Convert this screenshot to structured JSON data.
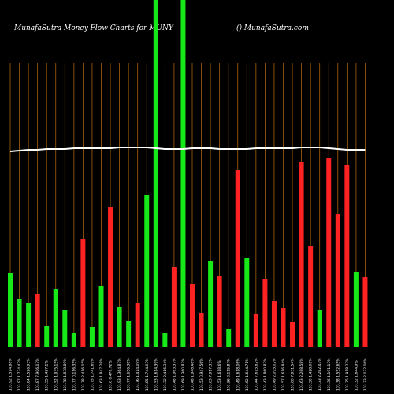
{
  "chart_data": {
    "type": "bar",
    "title": "MunafaSutra  Money Flow  Charts for MUNY",
    "subtitle": "() MunafaSutra.com",
    "categories": [
      "103.92 1.514.88%",
      "103.97 1.774.47%",
      "103.84 1.526.93%",
      "103.87 7.906.03%",
      "103.55 1.427.1%",
      "103.52 1.935.15%",
      "103.78 1.838.89%",
      "103.77 0.116.35%",
      "103.78 2.416.05%",
      "103.75 1.741.69%",
      "103.63 1.847.28%",
      "103.6 0.476.72%",
      "103.93 1.364.87%",
      "103.77 1.656.38%",
      "103.76 1.414.09%",
      "103.85 1.744.03%",
      "103.53 1.614.39%",
      "103.32 2.416.34%",
      "103.48 1.963.37%",
      "103.69 1.360.82%",
      "103.48 1.948.48%",
      "103.53 0.947.56%",
      "103.63 7.917.33%",
      "103.53 1.618.6%",
      "103.56 2.115.87%",
      "103.49 1.618.06%",
      "103.62 1.644.71%",
      "103.44 7.615.82%",
      "103.43 1.860.82%",
      "103.49 2.095.02%",
      "103.57 1.616.84%",
      "103.60 7.931.54%",
      "103.63 2.288.58%",
      "103.50 1.428.06%",
      "103.33 2.282.43%",
      "103.36 1.191.13%",
      "103.38 1.552.65%",
      "103.35 1.918.27%",
      "103.32 1.644.9%",
      "103.33 2.032.06%"
    ],
    "values": [
      93,
      60,
      56,
      67,
      26,
      73,
      46,
      17,
      137,
      25,
      77,
      177,
      51,
      33,
      56,
      193,
      440,
      17,
      101,
      440,
      79,
      43,
      109,
      90,
      23,
      224,
      112,
      41,
      86,
      58,
      49,
      31,
      235,
      128,
      47,
      240,
      169,
      230,
      95,
      89
    ],
    "colors": [
      "#17e817",
      "#17e817",
      "#17e817",
      "#ff2222",
      "#17e817",
      "#17e817",
      "#17e817",
      "#17e817",
      "#ff2222",
      "#17e817",
      "#17e817",
      "#ff2222",
      "#17e817",
      "#17e817",
      "#ff2222",
      "#17e817",
      "#17e817",
      "#17e817",
      "#ff2222",
      "#17e817",
      "#ff2222",
      "#ff2222",
      "#17e817",
      "#ff2222",
      "#17e817",
      "#ff2222",
      "#17e817",
      "#ff2222",
      "#ff2222",
      "#ff2222",
      "#ff2222",
      "#ff2222",
      "#ff2222",
      "#ff2222",
      "#17e817",
      "#ff2222",
      "#ff2222",
      "#ff2222",
      "#17e817",
      "#ff2222"
    ],
    "line_values": [
      248,
      249,
      250,
      250,
      251,
      251,
      251,
      252,
      252,
      252,
      252,
      252,
      253,
      253,
      253,
      253,
      252,
      251,
      251,
      251,
      252,
      252,
      252,
      251,
      251,
      251,
      251,
      252,
      252,
      252,
      252,
      252,
      253,
      253,
      253,
      252,
      251,
      250,
      250,
      250
    ],
    "line_color": "#ffffff",
    "ylim": [
      0,
      440
    ],
    "grid": true,
    "grid_color": "#a8620a"
  }
}
